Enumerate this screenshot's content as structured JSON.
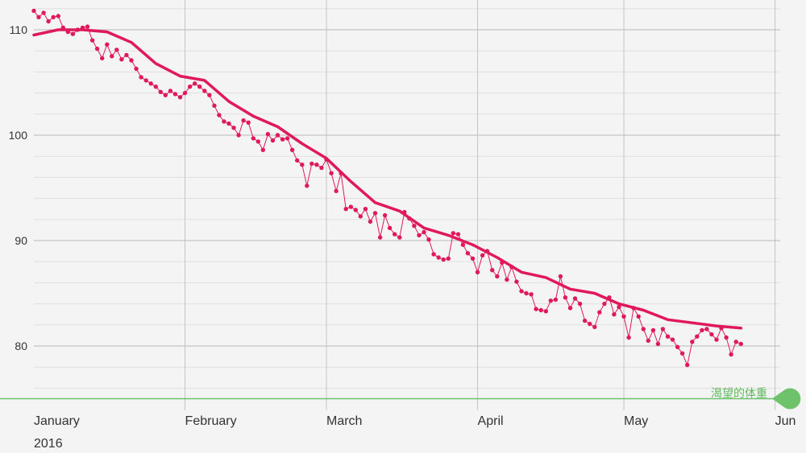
{
  "chart_data": {
    "type": "line",
    "x_unit": "days since 2016-01-01",
    "ylim": [
      75,
      112
    ],
    "y_ticks": [
      "110",
      "100",
      "90",
      "80"
    ],
    "y_tick_values": [
      110,
      100,
      90,
      80
    ],
    "x_labels": [
      "January",
      "February",
      "March",
      "April",
      "May",
      "Jun"
    ],
    "x_label_days": [
      0,
      31,
      60,
      91,
      121,
      152
    ],
    "year_label": "2016",
    "goal": {
      "label": "渴望的体重",
      "value": 75,
      "color": "#5cb85c"
    },
    "grid": true,
    "series": [
      {
        "style": "trend",
        "color": "#e0195c",
        "x": [
          0,
          5,
          10,
          15,
          20,
          25,
          30,
          35,
          40,
          45,
          50,
          55,
          60,
          65,
          70,
          75,
          80,
          85,
          90,
          95,
          100,
          105,
          110,
          115,
          120,
          125,
          130,
          135,
          140,
          145
        ],
        "y": [
          109.5,
          110,
          110,
          109.8,
          108.8,
          106.8,
          105.6,
          105.2,
          103.2,
          101.8,
          100.8,
          99.2,
          97.8,
          95.6,
          93.6,
          92.8,
          91.2,
          90.5,
          89.6,
          88.4,
          87,
          86.5,
          85.4,
          85,
          84,
          83.4,
          82.5,
          82.2,
          81.9,
          81.7
        ]
      },
      {
        "style": "daily",
        "color": "#e0195c",
        "x": [
          0,
          1,
          2,
          3,
          4,
          5,
          6,
          7,
          8,
          9,
          10,
          11,
          12,
          13,
          14,
          15,
          16,
          17,
          18,
          19,
          20,
          21,
          22,
          23,
          24,
          25,
          26,
          27,
          28,
          29,
          30,
          31,
          32,
          33,
          34,
          35,
          36,
          37,
          38,
          39,
          40,
          41,
          42,
          43,
          44,
          45,
          46,
          47,
          48,
          49,
          50,
          51,
          52,
          53,
          54,
          55,
          56,
          57,
          58,
          59,
          60,
          61,
          62,
          63,
          64,
          65,
          66,
          67,
          68,
          69,
          70,
          71,
          72,
          73,
          74,
          75,
          76,
          77,
          78,
          79,
          80,
          81,
          82,
          83,
          84,
          85,
          86,
          87,
          88,
          89,
          90,
          91,
          92,
          93,
          94,
          95,
          96,
          97,
          98,
          99,
          100,
          101,
          102,
          103,
          104,
          105,
          106,
          107,
          108,
          109,
          110,
          111,
          112,
          113,
          114,
          115,
          116,
          117,
          118,
          119,
          120,
          121,
          122,
          123,
          124,
          125,
          126,
          127,
          128,
          129,
          130,
          131,
          132,
          133,
          134,
          135,
          136,
          137,
          138,
          139,
          140,
          141,
          142,
          143,
          144,
          145
        ],
        "y": [
          111.8,
          111.2,
          111.6,
          110.8,
          111.2,
          111.3,
          110.2,
          109.8,
          109.6,
          110,
          110.2,
          110.3,
          109,
          108.2,
          107.3,
          108.6,
          107.5,
          108.1,
          107.2,
          107.6,
          107.1,
          106.3,
          105.5,
          105.2,
          104.9,
          104.6,
          104.1,
          103.8,
          104.2,
          103.9,
          103.6,
          104,
          104.6,
          104.9,
          104.6,
          104.2,
          103.8,
          102.8,
          101.9,
          101.3,
          101.1,
          100.7,
          100,
          101.4,
          101.2,
          99.7,
          99.4,
          98.6,
          100.1,
          99.5,
          100,
          99.6,
          99.7,
          98.6,
          97.6,
          97.2,
          95.2,
          97.3,
          97.2,
          96.9,
          97.7,
          96.4,
          94.7,
          96.4,
          93,
          93.2,
          92.9,
          92.3,
          93,
          91.8,
          92.6,
          90.3,
          92.4,
          91.2,
          90.6,
          90.3,
          92.7,
          92.1,
          91.4,
          90.5,
          90.8,
          90.1,
          88.7,
          88.4,
          88.2,
          88.3,
          90.7,
          90.6,
          89.6,
          88.8,
          88.3,
          87,
          88.6,
          89,
          87.2,
          86.6,
          87.9,
          86.3,
          87.5,
          86.1,
          85.2,
          85,
          84.9,
          83.5,
          83.4,
          83.3,
          84.3,
          84.4,
          86.6,
          84.6,
          83.6,
          84.5,
          84,
          82.4,
          82.1,
          81.8,
          83.2,
          84,
          84.6,
          83,
          83.7,
          82.8,
          80.8,
          83.6,
          82.8,
          81.6,
          80.5,
          81.5,
          80.2,
          81.6,
          80.9,
          80.6,
          79.9,
          79.3,
          78.2,
          80.4,
          80.9,
          81.5,
          81.6,
          81.1,
          80.6,
          81.7,
          80.8,
          79.2,
          80.4,
          80.2
        ]
      }
    ]
  }
}
